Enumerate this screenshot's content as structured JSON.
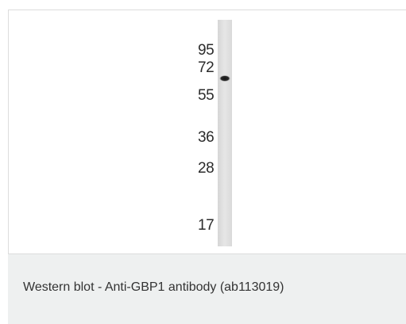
{
  "figure": {
    "markers": [
      {
        "label": "95"
      },
      {
        "label": "72"
      },
      {
        "label": "55"
      },
      {
        "label": "36"
      },
      {
        "label": "28"
      },
      {
        "label": "17"
      }
    ],
    "caption": "Western blot - Anti-GBP1 antibody (ab113019)"
  },
  "colors": {
    "lane": "#e3e3e3",
    "band": "#1e1e1e",
    "caption_bg": "#eef0f0",
    "text": "#333333"
  }
}
